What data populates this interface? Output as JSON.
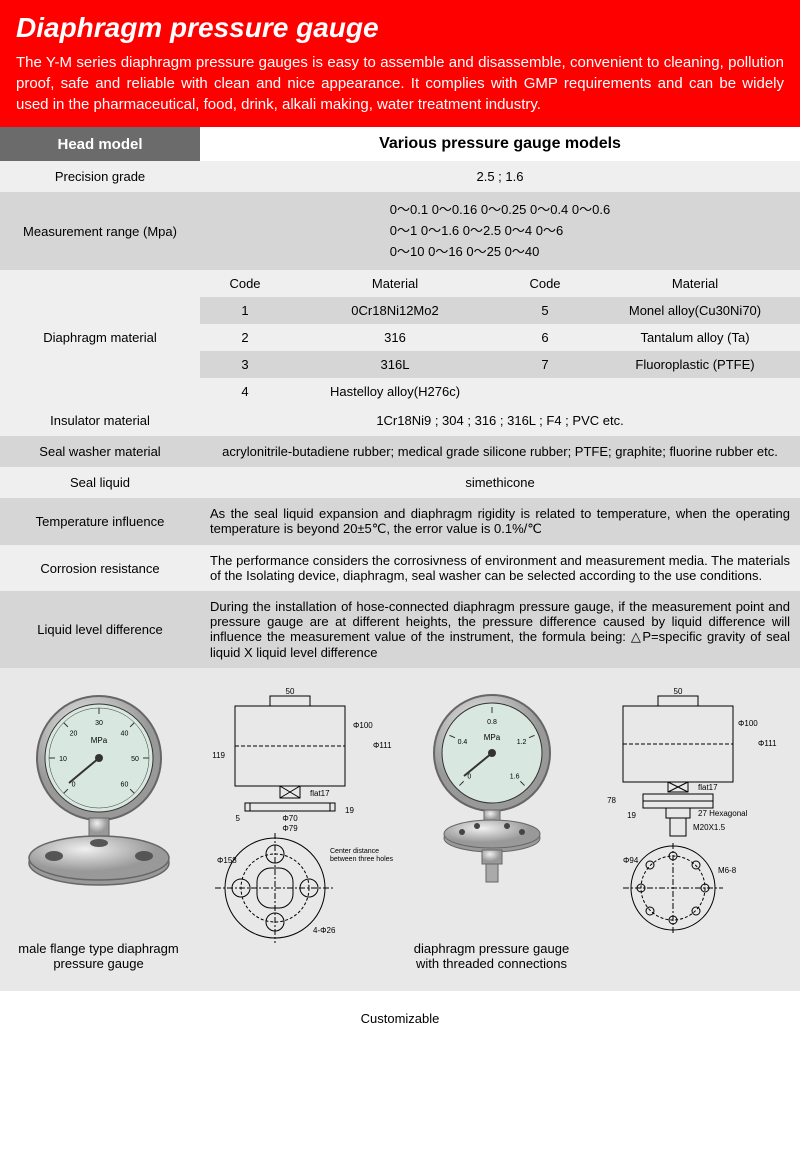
{
  "header": {
    "title": "Diaphragm pressure gauge",
    "description": "The Y-M series diaphragm pressure gauges is easy to assemble and disassemble, convenient to cleaning, pollution proof, safe and reliable with clean and nice appearance. It complies with GMP requirements and can be widely used in the pharmaceutical, food, drink, alkali making, water treatment industry.",
    "bg_color": "#ff0000",
    "text_color": "#ffffff"
  },
  "table": {
    "col_header_left": "Head model",
    "col_header_right": "Various pressure gauge models",
    "rows": {
      "precision": {
        "label": "Precision grade",
        "value": "2.5 ;  1.6"
      },
      "range": {
        "label": "Measurement range (Mpa)",
        "line1": "0～0.1   0～0.16   0～0.25   0～0.4   0～0.6",
        "line2": "0～1    0～1.6    0～2.5    0～4    0～6",
        "line3": "0～10   0～16     0～25     0～40"
      },
      "diaphragm": {
        "label": "Diaphragm material",
        "sub_headers": {
          "code": "Code",
          "material": "Material"
        },
        "items": [
          {
            "code": "1",
            "material": "0Cr18Ni12Mo2",
            "code2": "5",
            "material2": "Monel alloy(Cu30Ni70)"
          },
          {
            "code": "2",
            "material": "316",
            "code2": "6",
            "material2": "Tantalum alloy (Ta)"
          },
          {
            "code": "3",
            "material": "316L",
            "code2": "7",
            "material2": "Fluoroplastic (PTFE)"
          },
          {
            "code": "4",
            "material": "Hastelloy alloy(H276c)",
            "code2": "",
            "material2": ""
          }
        ]
      },
      "insulator": {
        "label": "Insulator material",
        "value": "1Cr18Ni9 ; 304 ; 316 ; 316L ; F4 ; PVC etc."
      },
      "seal_washer": {
        "label": "Seal washer material",
        "value": "acrylonitrile-butadiene rubber; medical grade silicone rubber; PTFE; graphite; fluorine rubber etc."
      },
      "seal_liquid": {
        "label": "Seal liquid",
        "value": "simethicone"
      },
      "temp": {
        "label": "Temperature influence",
        "value": "As the seal liquid expansion and diaphragm rigidity is related to temperature, when the operating temperature is beyond 20±5℃, the error value is 0.1%/℃"
      },
      "corrosion": {
        "label": "Corrosion resistance",
        "value": "The performance considers the corrosivness of environment and measurement media. The materials of the Isolating device, diaphragm, seal washer can be selected according to the use conditions."
      },
      "liquid_level": {
        "label": "Liquid level difference",
        "value": "During the installation of hose-connected diaphragm pressure gauge, if the measurement point and pressure gauge are at different heights, the pressure difference  caused by liquid difference will influence the measurement value of the instrument, the formula being:  △P=specific gravity of seal liquid X liquid level difference"
      }
    }
  },
  "diagrams": {
    "gauge1": {
      "label": "male flange type diaphragm pressure gauge",
      "dial_values": [
        "0",
        "10",
        "20",
        "30",
        "40",
        "50",
        "60"
      ],
      "unit": "MPa",
      "face_color": "#d8e8e0"
    },
    "tech1": {
      "dims": {
        "w50": "50",
        "d100": "Φ100",
        "d111": "Φ111",
        "h119": "119",
        "flat17": "flat17",
        "gap5": "5",
        "d70": "Φ70",
        "d79": "Φ79",
        "h19": "19",
        "d158": "Φ158",
        "center": "Center distance between three holes Φ108",
        "holes": "4-Φ26"
      }
    },
    "gauge2": {
      "label": "diaphragm pressure gauge with threaded connections",
      "dial_values": [
        "0",
        "0.4",
        "0.8",
        "1.2",
        "1.6"
      ],
      "unit": "MPa",
      "face_color": "#d8e8e0"
    },
    "tech2": {
      "dims": {
        "w50": "50",
        "d100": "Φ100",
        "d111": "Φ111",
        "flat17": "flat17",
        "h78": "78",
        "h19": "19",
        "hex": "27 Hexagonal",
        "thread": "M20X1.5",
        "d94": "Φ94",
        "bolts": "M6-8"
      }
    }
  },
  "footer": {
    "note": "Customizable"
  },
  "colors": {
    "header_dark": "#6b6b6b",
    "row_light": "#efefef",
    "row_dark": "#d6d6d6",
    "diagram_bg": "#e8e8e8"
  }
}
